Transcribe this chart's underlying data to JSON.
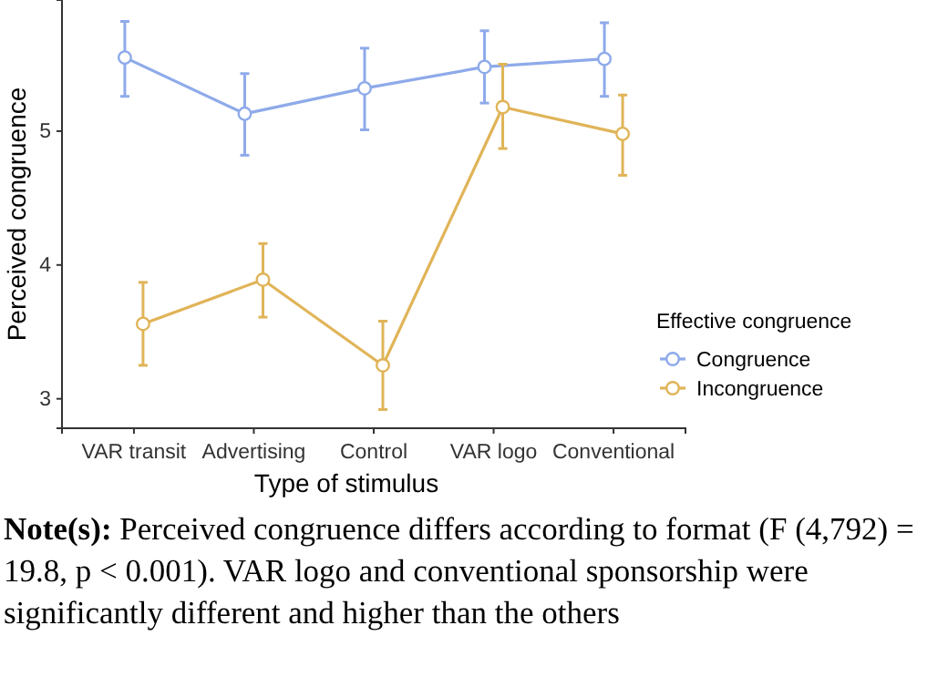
{
  "chart_data": {
    "type": "line",
    "xlabel": "Type of stimulus",
    "ylabel": "Perceived congruence",
    "legend_title": "Effective congruence",
    "categories": [
      "VAR transit",
      "Advertising",
      "Control",
      "VAR logo",
      "Conventional"
    ],
    "series": [
      {
        "name": "Congruence",
        "color": "#8eaaea",
        "values": [
          5.55,
          5.13,
          5.32,
          5.48,
          5.54
        ],
        "errors": [
          [
            5.26,
            5.82
          ],
          [
            4.82,
            5.43
          ],
          [
            5.01,
            5.62
          ],
          [
            5.21,
            5.75
          ],
          [
            5.26,
            5.81
          ]
        ]
      },
      {
        "name": "Incongruence",
        "color": "#e0b458",
        "values": [
          3.56,
          3.89,
          3.25,
          5.18,
          4.98
        ],
        "errors": [
          [
            3.25,
            3.87
          ],
          [
            3.61,
            4.16
          ],
          [
            2.92,
            3.58
          ],
          [
            4.87,
            5.5
          ],
          [
            4.67,
            5.27
          ]
        ]
      }
    ],
    "ylim": [
      2.78,
      5.98
    ],
    "yticks": [
      3,
      4,
      5
    ],
    "grid": false,
    "legend": "right",
    "marker": "circle",
    "line_style": "solid",
    "annotations": [
      "Note(s): Perceived congruence differs according to format (F (4,792) = 19.8, p < 0.001). VAR logo and conventional sponsorship were significantly different and higher than the others"
    ]
  }
}
